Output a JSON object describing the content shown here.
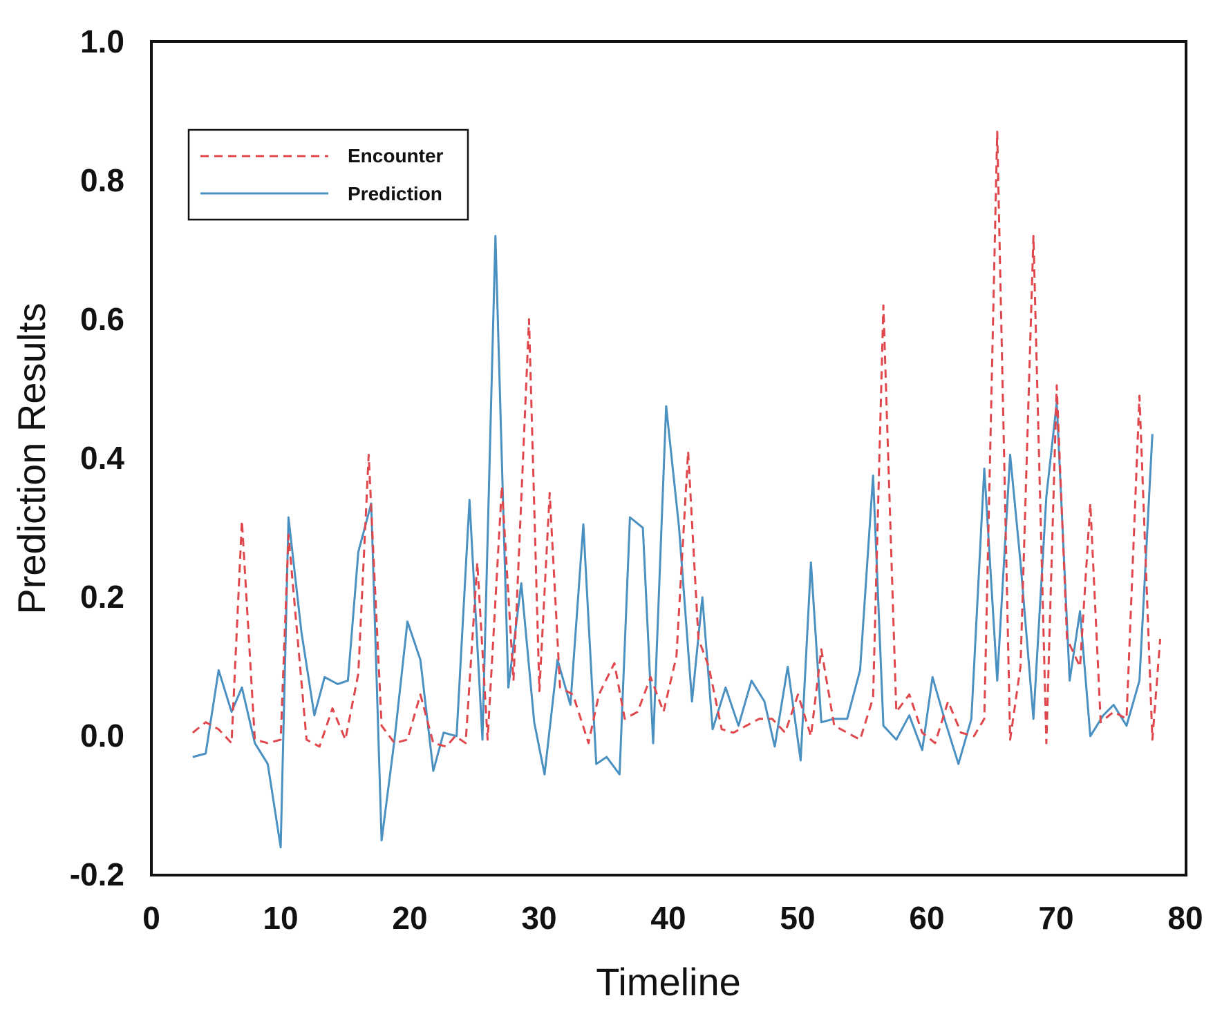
{
  "chart_data": {
    "type": "line",
    "title": "",
    "xlabel": "Timeline",
    "ylabel": "Prediction Results",
    "xlim": [
      0,
      80
    ],
    "ylim": [
      -0.2,
      1.0
    ],
    "xticks": [
      0,
      10,
      20,
      30,
      40,
      50,
      60,
      70,
      80
    ],
    "yticks": [
      -0.2,
      0.0,
      0.2,
      0.4,
      0.6,
      0.8,
      1.0
    ],
    "xtick_labels": [
      "0",
      "10",
      "20",
      "30",
      "40",
      "50",
      "60",
      "70",
      "80"
    ],
    "ytick_labels": [
      "-0.2",
      "0.0",
      "0.2",
      "0.4",
      "0.6",
      "0.8",
      "1.0"
    ],
    "grid": false,
    "legend_position": "top-left",
    "series": [
      {
        "name": "Encounter",
        "color": "#e0474c",
        "style": "dashed",
        "points": [
          [
            3.2,
            0.005
          ],
          [
            4.2,
            0.02
          ],
          [
            5.2,
            0.01
          ],
          [
            6.2,
            -0.01
          ],
          [
            7.0,
            0.31
          ],
          [
            8.0,
            -0.005
          ],
          [
            9.0,
            -0.01
          ],
          [
            10.0,
            -0.005
          ],
          [
            10.6,
            0.29
          ],
          [
            12.0,
            -0.005
          ],
          [
            13.0,
            -0.015
          ],
          [
            14.0,
            0.04
          ],
          [
            15.0,
            -0.005
          ],
          [
            16.0,
            0.09
          ],
          [
            16.8,
            0.405
          ],
          [
            17.8,
            0.015
          ],
          [
            18.8,
            -0.01
          ],
          [
            19.8,
            -0.005
          ],
          [
            20.8,
            0.06
          ],
          [
            21.8,
            -0.01
          ],
          [
            22.8,
            -0.015
          ],
          [
            23.5,
            0.0
          ],
          [
            24.3,
            -0.01
          ],
          [
            25.2,
            0.25
          ],
          [
            26.0,
            -0.005
          ],
          [
            27.1,
            0.36
          ],
          [
            28.0,
            0.08
          ],
          [
            29.2,
            0.6
          ],
          [
            30.0,
            0.065
          ],
          [
            30.8,
            0.35
          ],
          [
            31.6,
            0.07
          ],
          [
            32.6,
            0.06
          ],
          [
            33.8,
            -0.01
          ],
          [
            34.6,
            0.06
          ],
          [
            35.8,
            0.105
          ],
          [
            36.6,
            0.025
          ],
          [
            37.6,
            0.035
          ],
          [
            38.6,
            0.085
          ],
          [
            39.6,
            0.035
          ],
          [
            40.6,
            0.115
          ],
          [
            41.5,
            0.41
          ],
          [
            42.3,
            0.14
          ],
          [
            43.1,
            0.1
          ],
          [
            44.1,
            0.01
          ],
          [
            45.0,
            0.005
          ],
          [
            46.0,
            0.015
          ],
          [
            47.0,
            0.025
          ],
          [
            48.0,
            0.025
          ],
          [
            49.0,
            0.005
          ],
          [
            50.0,
            0.06
          ],
          [
            51.0,
            0.0
          ],
          [
            51.8,
            0.125
          ],
          [
            52.8,
            0.015
          ],
          [
            53.8,
            0.005
          ],
          [
            54.8,
            -0.005
          ],
          [
            55.8,
            0.055
          ],
          [
            56.6,
            0.62
          ],
          [
            57.6,
            0.035
          ],
          [
            58.6,
            0.06
          ],
          [
            59.6,
            0.005
          ],
          [
            60.6,
            -0.01
          ],
          [
            61.6,
            0.05
          ],
          [
            62.6,
            0.005
          ],
          [
            63.6,
            0.0
          ],
          [
            64.4,
            0.025
          ],
          [
            65.4,
            0.87
          ],
          [
            66.4,
            -0.005
          ],
          [
            67.2,
            0.1
          ],
          [
            68.2,
            0.72
          ],
          [
            69.2,
            -0.01
          ],
          [
            70.0,
            0.505
          ],
          [
            70.8,
            0.14
          ],
          [
            71.8,
            0.1
          ],
          [
            72.6,
            0.335
          ],
          [
            73.4,
            0.02
          ],
          [
            74.4,
            0.035
          ],
          [
            75.4,
            0.025
          ],
          [
            76.4,
            0.49
          ],
          [
            77.4,
            -0.005
          ],
          [
            78.0,
            0.14
          ]
        ]
      },
      {
        "name": "Prediction",
        "color": "#4a90c0",
        "style": "solid",
        "points": [
          [
            3.2,
            -0.03
          ],
          [
            4.2,
            -0.025
          ],
          [
            5.2,
            0.095
          ],
          [
            6.2,
            0.035
          ],
          [
            7.0,
            0.07
          ],
          [
            8.0,
            -0.01
          ],
          [
            9.0,
            -0.04
          ],
          [
            10.0,
            -0.16
          ],
          [
            10.6,
            0.315
          ],
          [
            11.6,
            0.15
          ],
          [
            12.6,
            0.03
          ],
          [
            13.4,
            0.085
          ],
          [
            14.4,
            0.075
          ],
          [
            15.2,
            0.08
          ],
          [
            16.0,
            0.265
          ],
          [
            17.0,
            0.335
          ],
          [
            17.8,
            -0.15
          ],
          [
            18.8,
            -0.005
          ],
          [
            19.8,
            0.165
          ],
          [
            20.8,
            0.11
          ],
          [
            21.8,
            -0.05
          ],
          [
            22.6,
            0.005
          ],
          [
            23.6,
            0.0
          ],
          [
            24.6,
            0.34
          ],
          [
            25.6,
            -0.005
          ],
          [
            26.6,
            0.72
          ],
          [
            27.6,
            0.07
          ],
          [
            28.6,
            0.22
          ],
          [
            29.6,
            0.02
          ],
          [
            30.4,
            -0.055
          ],
          [
            31.4,
            0.11
          ],
          [
            32.4,
            0.045
          ],
          [
            33.4,
            0.305
          ],
          [
            34.4,
            -0.04
          ],
          [
            35.2,
            -0.03
          ],
          [
            36.2,
            -0.055
          ],
          [
            37.0,
            0.315
          ],
          [
            38.0,
            0.3
          ],
          [
            38.8,
            -0.01
          ],
          [
            39.8,
            0.475
          ],
          [
            40.8,
            0.3
          ],
          [
            41.8,
            0.05
          ],
          [
            42.6,
            0.2
          ],
          [
            43.4,
            0.01
          ],
          [
            44.4,
            0.07
          ],
          [
            45.4,
            0.015
          ],
          [
            46.4,
            0.08
          ],
          [
            47.4,
            0.05
          ],
          [
            48.2,
            -0.015
          ],
          [
            49.2,
            0.1
          ],
          [
            50.2,
            -0.035
          ],
          [
            51.0,
            0.25
          ],
          [
            51.8,
            0.02
          ],
          [
            52.8,
            0.025
          ],
          [
            53.8,
            0.025
          ],
          [
            54.8,
            0.095
          ],
          [
            55.8,
            0.375
          ],
          [
            56.6,
            0.015
          ],
          [
            57.6,
            -0.005
          ],
          [
            58.6,
            0.03
          ],
          [
            59.6,
            -0.02
          ],
          [
            60.4,
            0.085
          ],
          [
            61.4,
            0.02
          ],
          [
            62.4,
            -0.04
          ],
          [
            63.4,
            0.025
          ],
          [
            64.4,
            0.385
          ],
          [
            65.4,
            0.08
          ],
          [
            66.4,
            0.405
          ],
          [
            67.2,
            0.25
          ],
          [
            68.2,
            0.025
          ],
          [
            69.2,
            0.345
          ],
          [
            70.0,
            0.48
          ],
          [
            71.0,
            0.08
          ],
          [
            71.8,
            0.18
          ],
          [
            72.6,
            0.0
          ],
          [
            73.6,
            0.03
          ],
          [
            74.4,
            0.045
          ],
          [
            75.4,
            0.015
          ],
          [
            76.4,
            0.08
          ],
          [
            77.4,
            0.435
          ]
        ]
      }
    ]
  }
}
